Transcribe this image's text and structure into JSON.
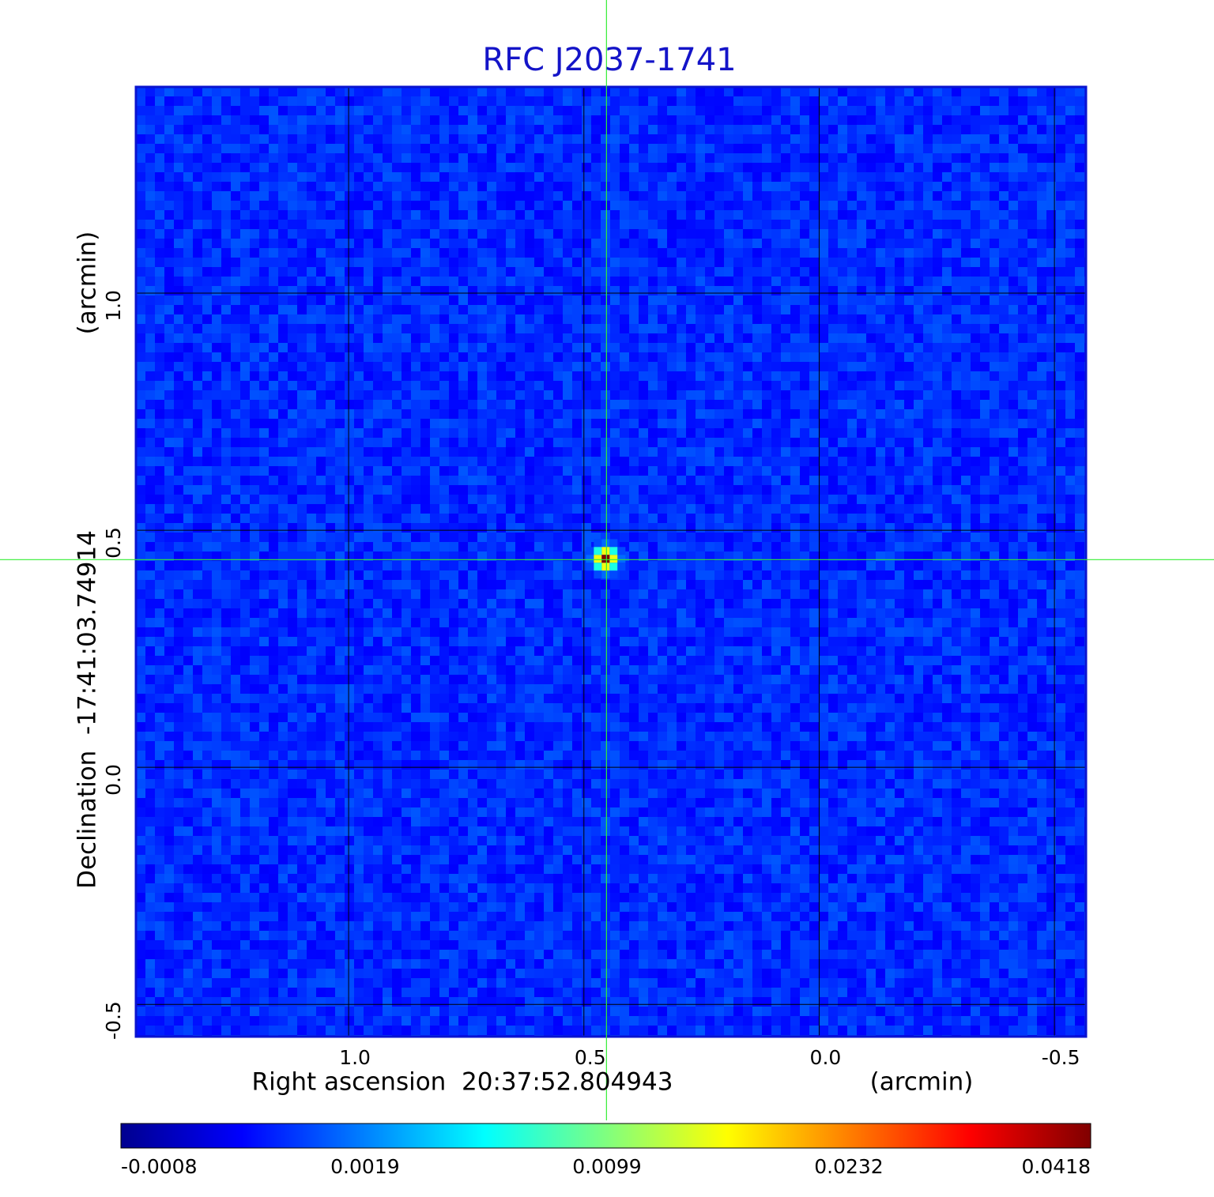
{
  "chart_data": {
    "type": "image",
    "title": "RFC J2037-1741",
    "x_label": "Right ascension  20:37:52.804943",
    "x_unit": "(arcmin)",
    "y_label": "Declination  -17:41:03.74914",
    "y_unit": "(arcmin)",
    "xlim": [
      1.452,
      -0.567
    ],
    "ylim": [
      -0.568,
      1.435
    ],
    "xticks": [
      {
        "value": 1,
        "label": "1.0"
      },
      0.5,
      {
        "value": 0,
        "label": "0.0"
      },
      -0.5
    ],
    "yticks": [
      -0.5,
      {
        "value": 0,
        "label": "0.0"
      },
      0.5,
      {
        "value": 1,
        "label": "1.0"
      }
    ],
    "grid": true,
    "crosshair": {
      "x": 0.452,
      "y": 0.438,
      "color": "#33ee33"
    },
    "source": {
      "x": 0.452,
      "y": 0.438,
      "peak": 0.0418
    },
    "colormap": "jet",
    "colorbar": {
      "scale": "sqrt",
      "lim": [
        -0.0008,
        0.0418
      ],
      "ticks": [
        -0.0008,
        0.0019,
        0.0099,
        0.0232,
        0.0418
      ]
    }
  }
}
